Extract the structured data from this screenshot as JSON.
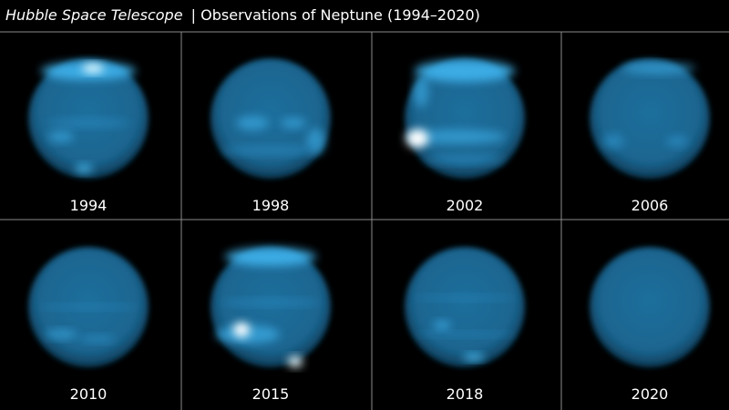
{
  "header": {
    "title_italic": "Hubble Space Telescope",
    "title_rest": "| Observations of Neptune (1994–2020)"
  },
  "panels": [
    {
      "label": "1994"
    },
    {
      "label": "1998"
    },
    {
      "label": "2002"
    },
    {
      "label": "2006"
    },
    {
      "label": "2010"
    },
    {
      "label": "2015"
    },
    {
      "label": "2018"
    },
    {
      "label": "2020"
    }
  ]
}
